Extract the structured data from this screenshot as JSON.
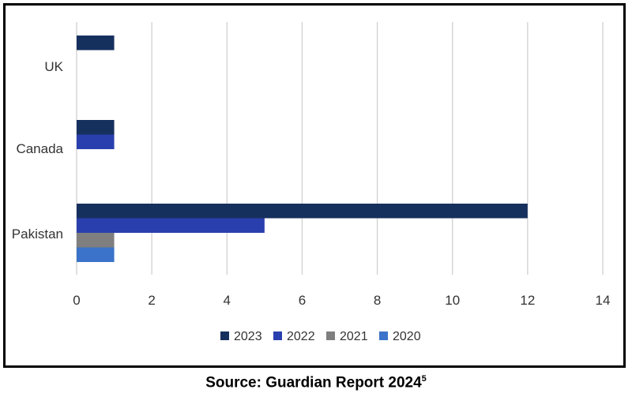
{
  "chart_data": {
    "type": "bar",
    "orientation": "horizontal",
    "categories": [
      "UK",
      "Canada",
      "Pakistan"
    ],
    "series": [
      {
        "name": "2023",
        "color": "#16305e",
        "values": [
          1,
          1,
          12
        ]
      },
      {
        "name": "2022",
        "color": "#2a3fae",
        "values": [
          0,
          1,
          5
        ]
      },
      {
        "name": "2021",
        "color": "#7f7f7f",
        "values": [
          0,
          0,
          1
        ]
      },
      {
        "name": "2020",
        "color": "#3a73c9",
        "values": [
          0,
          0,
          1
        ]
      }
    ],
    "x_ticks": [
      "0",
      "2",
      "4",
      "6",
      "8",
      "10",
      "12",
      "14"
    ],
    "xlim": [
      0,
      14
    ],
    "grid": true,
    "legend_position": "bottom",
    "title": "",
    "xlabel": "",
    "ylabel": ""
  },
  "caption": {
    "text": "Source: Guardian Report 2024",
    "superscript": "5"
  }
}
